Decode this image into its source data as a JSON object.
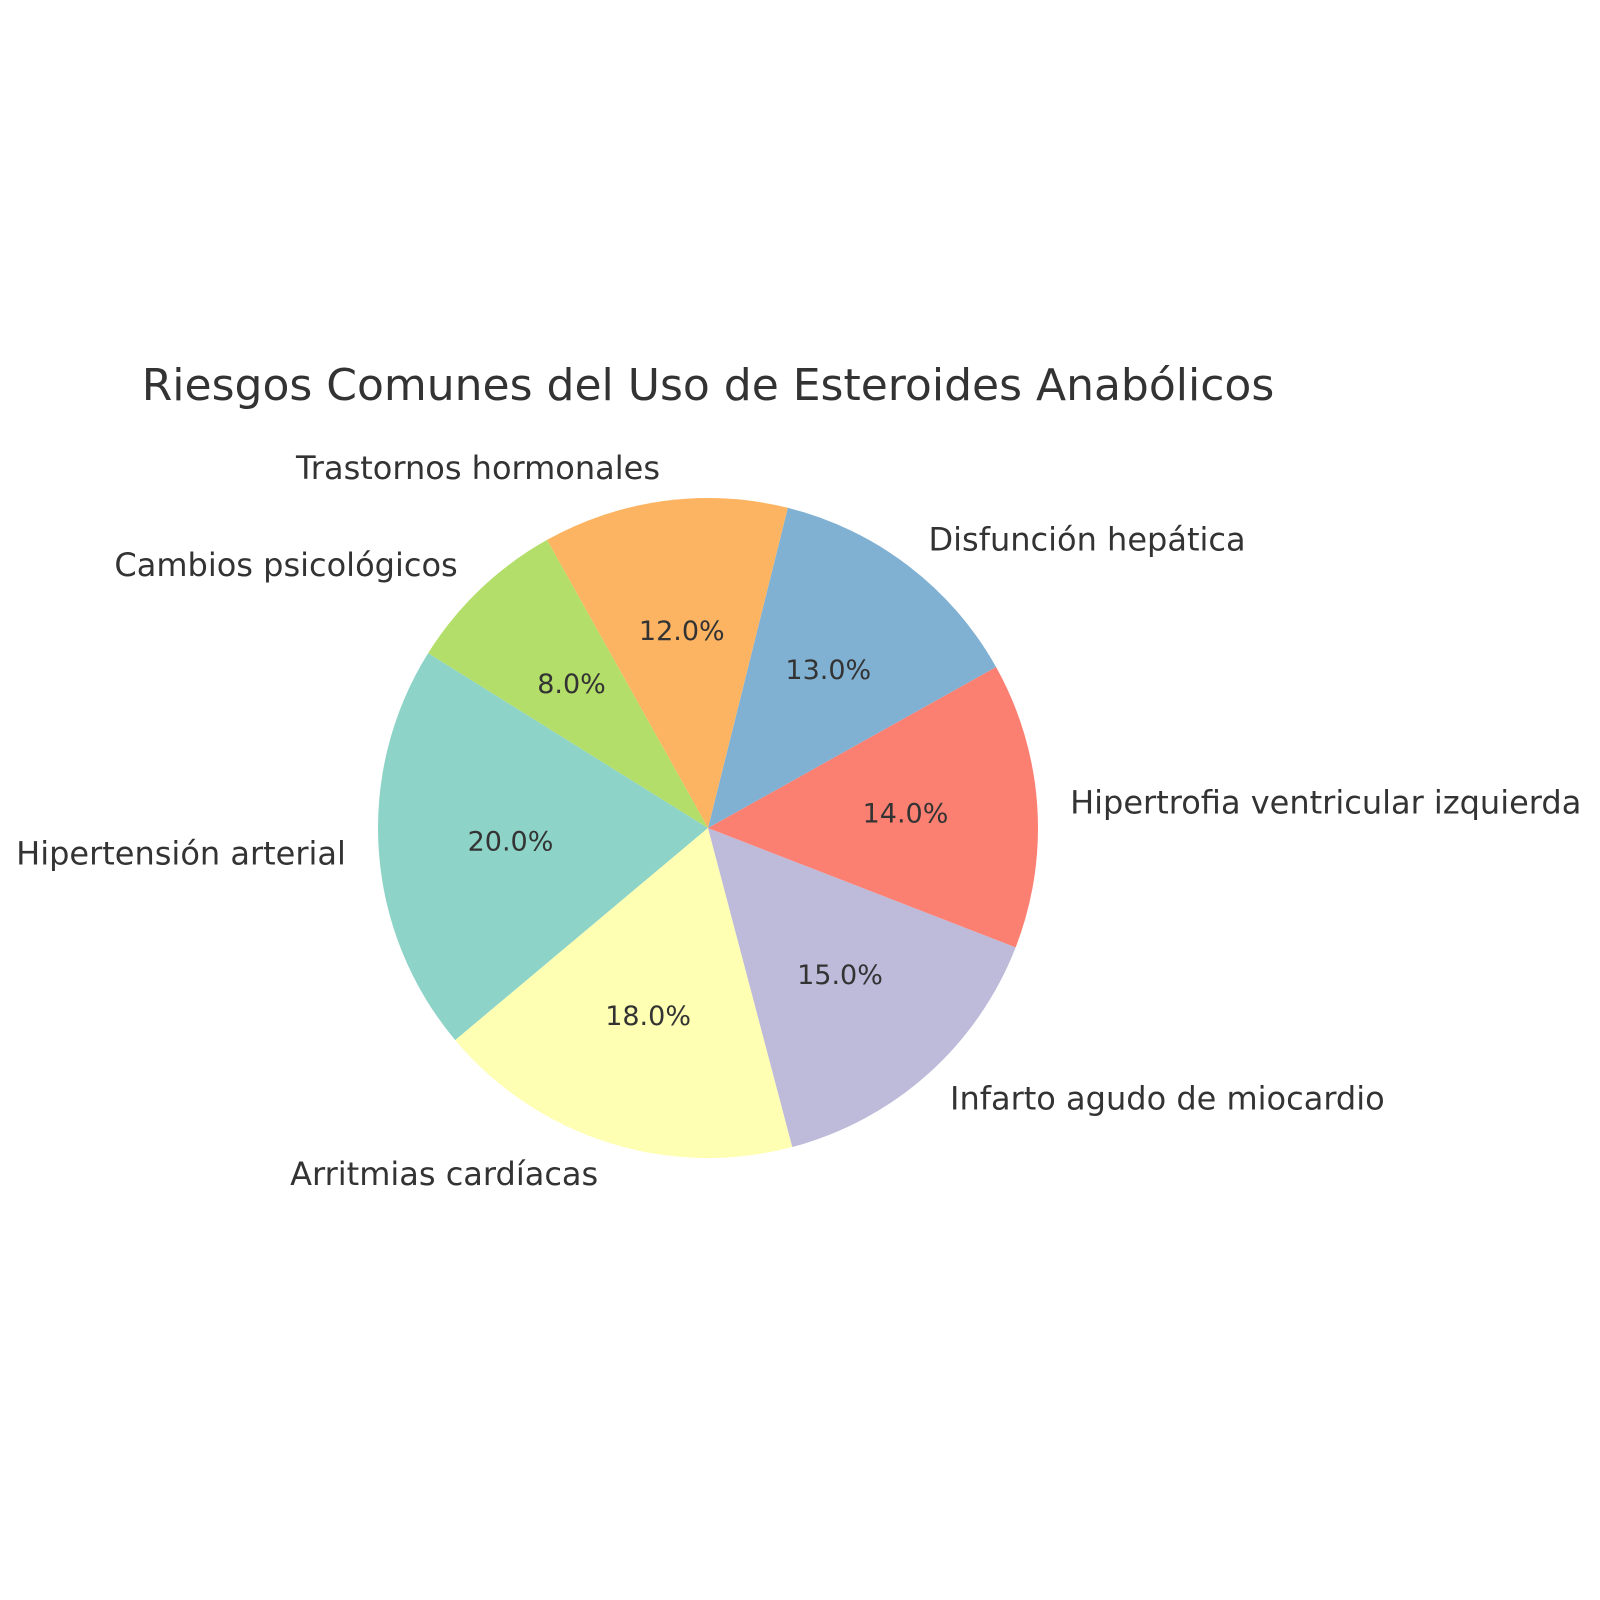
{
  "chart_data": {
    "type": "pie",
    "title": "Riesgos Comunes del Uso de Esteroides Anabólicos",
    "start_angle_deg": 148,
    "direction": "counterclockwise",
    "slices": [
      {
        "label": "Hipertensión arterial",
        "value": 20.0,
        "pct_label": "20.0%",
        "color": "#8dd3c7"
      },
      {
        "label": "Arritmias cardíacas",
        "value": 18.0,
        "pct_label": "18.0%",
        "color": "#ffffb3"
      },
      {
        "label": "Infarto agudo de miocardio",
        "value": 15.0,
        "pct_label": "15.0%",
        "color": "#bebada"
      },
      {
        "label": "Hipertrofia ventricular izquierda",
        "value": 14.0,
        "pct_label": "14.0%",
        "color": "#fb8072"
      },
      {
        "label": "Disfunción hepática",
        "value": 13.0,
        "pct_label": "13.0%",
        "color": "#80b1d3"
      },
      {
        "label": "Trastornos hormonales",
        "value": 12.0,
        "pct_label": "12.0%",
        "color": "#fdb462"
      },
      {
        "label": "Cambios psicológicos",
        "value": 8.0,
        "pct_label": "8.0%",
        "color": "#b3de69"
      }
    ]
  }
}
